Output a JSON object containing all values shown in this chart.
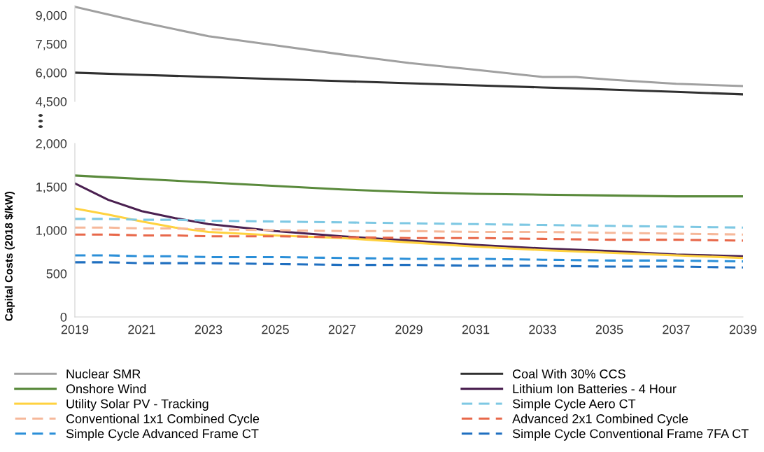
{
  "chart_data": [
    {
      "type": "line",
      "x": [
        2019,
        2021,
        2023,
        2025,
        2027,
        2029,
        2031,
        2033,
        2034,
        2035,
        2037,
        2039
      ],
      "xlim": [
        2019,
        2039
      ],
      "ylim": [
        4500,
        9500
      ],
      "yticks": [
        {
          "value": 4500,
          "label": "4,500"
        },
        {
          "value": 6000,
          "label": "6,000"
        },
        {
          "value": 7500,
          "label": "7,500"
        },
        {
          "value": 9000,
          "label": "9,000"
        }
      ],
      "tick_labels": "y",
      "grid": false,
      "legend": "bottom",
      "line_style": "solid",
      "series": [
        {
          "name": "Nuclear SMR",
          "color": "#a0a0a0",
          "values": [
            9440,
            8630,
            7900,
            7430,
            6950,
            6510,
            6150,
            5780,
            5780,
            5640,
            5420,
            5300
          ]
        },
        {
          "name": "Coal With 30% CCS",
          "color": "#303030",
          "values": [
            6000,
            5890,
            5780,
            5670,
            5560,
            5450,
            5340,
            5230,
            5180,
            5120,
            5000,
            4870
          ]
        }
      ]
    },
    {
      "type": "line",
      "x": [
        2019,
        2020,
        2021,
        2022,
        2023,
        2025,
        2027,
        2029,
        2031,
        2033,
        2035,
        2037,
        2039
      ],
      "xlim": [
        2019,
        2039
      ],
      "xticks": [
        2019,
        2021,
        2023,
        2025,
        2027,
        2029,
        2031,
        2033,
        2035,
        2037,
        2039
      ],
      "ylim": [
        0,
        2000
      ],
      "yticks": [
        0,
        500,
        {
          "value": 1000,
          "label": "1,000"
        },
        {
          "value": 1500,
          "label": "1,500"
        },
        {
          "value": 2000,
          "label": "2,000"
        }
      ],
      "ylabel": "Capital Costs (2018 $/kW)",
      "grid": false,
      "legend": "bottom",
      "series": [
        {
          "name": "Onshore Wind",
          "color": "#5a8a3c",
          "line_style": "solid",
          "values": [
            1630,
            1610,
            1590,
            1570,
            1550,
            1510,
            1470,
            1440,
            1420,
            1410,
            1400,
            1390,
            1390
          ]
        },
        {
          "name": "Lithium Ion Batteries - 4 Hour",
          "color": "#4a2050",
          "line_style": "solid",
          "values": [
            1540,
            1350,
            1220,
            1140,
            1070,
            990,
            930,
            880,
            830,
            790,
            760,
            720,
            700
          ]
        },
        {
          "name": "Utility Solar PV - Tracking",
          "color": "#ffd23f",
          "line_style": "solid",
          "values": [
            1250,
            1180,
            1100,
            1030,
            980,
            940,
            910,
            860,
            810,
            770,
            740,
            710,
            680
          ]
        },
        {
          "name": "Simple Cycle Aero CT",
          "color": "#7ec8e3",
          "line_style": "dashed",
          "values": [
            1130,
            1130,
            1120,
            1120,
            1110,
            1100,
            1090,
            1080,
            1070,
            1060,
            1050,
            1040,
            1030
          ]
        },
        {
          "name": "Conventional 1x1 Combined Cycle",
          "color": "#f6b89a",
          "line_style": "dashed",
          "values": [
            1030,
            1030,
            1020,
            1020,
            1010,
            1000,
            990,
            990,
            980,
            980,
            970,
            960,
            950
          ]
        },
        {
          "name": "Advanced 2x1 Combined Cycle",
          "color": "#e8684a",
          "line_style": "dashed",
          "values": [
            950,
            950,
            940,
            940,
            930,
            930,
            920,
            910,
            910,
            900,
            890,
            890,
            880
          ]
        },
        {
          "name": "Simple Cycle Advanced Frame CT",
          "color": "#2b8fd8",
          "line_style": "dashed",
          "values": [
            710,
            710,
            700,
            700,
            690,
            690,
            680,
            670,
            670,
            660,
            650,
            650,
            640
          ]
        },
        {
          "name": "Simple Cycle Conventional Frame 7FA CT",
          "color": "#1f6fc0",
          "line_style": "dashed",
          "values": [
            630,
            630,
            620,
            620,
            620,
            610,
            600,
            600,
            590,
            590,
            580,
            580,
            570
          ]
        }
      ]
    }
  ]
}
